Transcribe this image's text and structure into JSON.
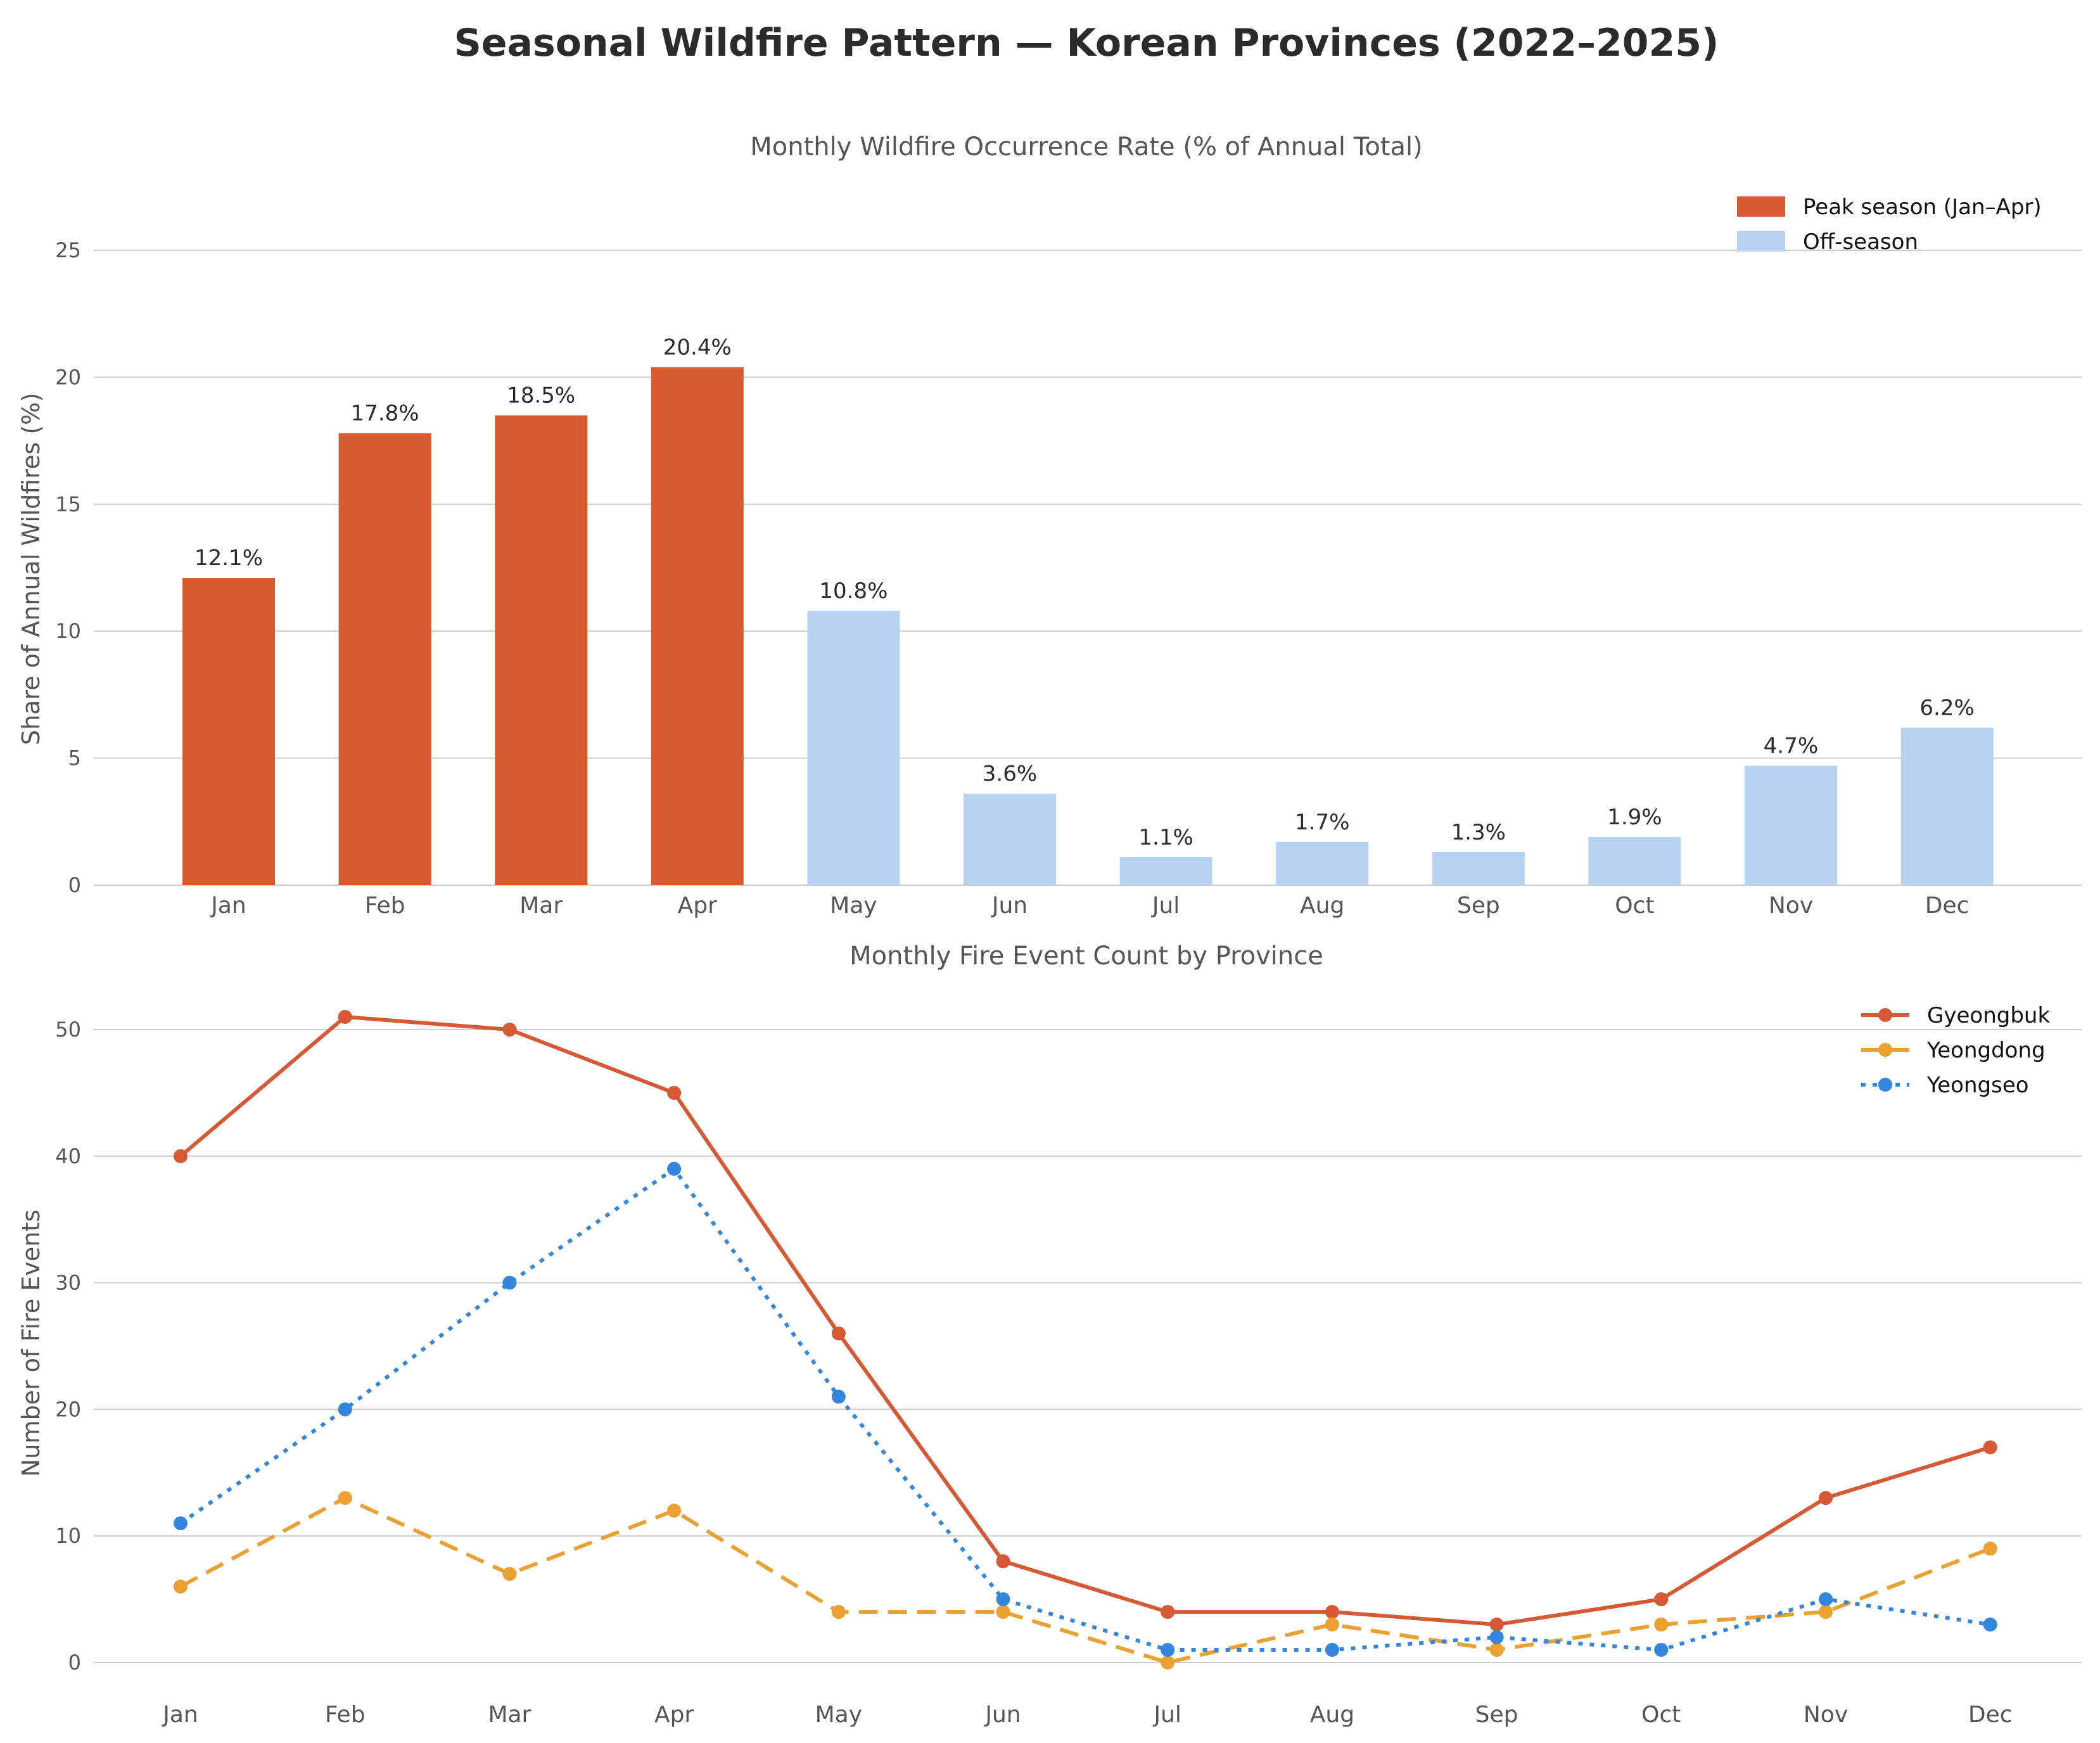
{
  "suptitle": "Seasonal Wildfire Pattern — Korean Provinces (2022–2025)",
  "colors": {
    "peak": "#d95b30",
    "off": "#b6d4f2",
    "gyeongbuk": "#d65834",
    "yeongdong": "#eba132",
    "yeongseo": "#3386db"
  },
  "chart_data": [
    {
      "type": "bar",
      "title": "Monthly Wildfire Occurrence Rate (% of Annual Total)",
      "xlabel": "",
      "ylabel": "Share of Annual Wildfires (%)",
      "ylim": [
        0,
        25
      ],
      "yticks": [
        0,
        5,
        10,
        15,
        20,
        25
      ],
      "grid": true,
      "legend_position": "top-right",
      "legend": [
        "Peak season (Jan–Apr)",
        "Off-season"
      ],
      "categories": [
        "Jan",
        "Feb",
        "Mar",
        "Apr",
        "May",
        "Jun",
        "Jul",
        "Aug",
        "Sep",
        "Oct",
        "Nov",
        "Dec"
      ],
      "values": [
        12.1,
        17.8,
        18.5,
        20.4,
        10.8,
        3.6,
        1.1,
        1.7,
        1.3,
        1.9,
        4.7,
        6.2
      ],
      "groups": [
        "peak",
        "peak",
        "peak",
        "peak",
        "off",
        "off",
        "off",
        "off",
        "off",
        "off",
        "off",
        "off"
      ],
      "labels": [
        "12.1%",
        "17.8%",
        "18.5%",
        "20.4%",
        "10.8%",
        "3.6%",
        "1.1%",
        "1.7%",
        "1.3%",
        "1.9%",
        "4.7%",
        "6.2%"
      ]
    },
    {
      "type": "line",
      "title": "Monthly Fire Event Count by Province",
      "xlabel": "",
      "ylabel": "Number of Fire Events",
      "ylim": [
        0,
        53
      ],
      "yticks": [
        0,
        10,
        20,
        30,
        40,
        50
      ],
      "grid": true,
      "legend_position": "top-right",
      "categories": [
        "Jan",
        "Feb",
        "Mar",
        "Apr",
        "May",
        "Jun",
        "Jul",
        "Aug",
        "Sep",
        "Oct",
        "Nov",
        "Dec"
      ],
      "series": [
        {
          "name": "Gyeongbuk",
          "style": "solid",
          "color": "#d65834",
          "values": [
            40,
            51,
            50,
            45,
            26,
            8,
            4,
            4,
            3,
            5,
            13,
            17
          ]
        },
        {
          "name": "Yeongdong",
          "style": "dashed",
          "color": "#eba132",
          "values": [
            6,
            13,
            7,
            12,
            4,
            4,
            0,
            3,
            1,
            3,
            4,
            9
          ]
        },
        {
          "name": "Yeongseo",
          "style": "dotted",
          "color": "#3386db",
          "values": [
            11,
            20,
            30,
            39,
            21,
            5,
            1,
            1,
            2,
            1,
            5,
            3
          ]
        }
      ]
    }
  ]
}
